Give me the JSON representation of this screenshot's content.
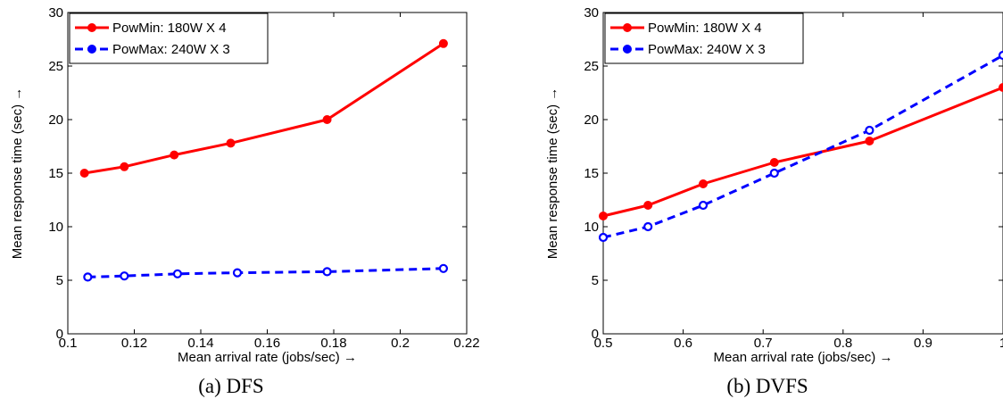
{
  "chart_data": [
    {
      "type": "line",
      "caption": "(a) DFS",
      "xlabel": "Mean arrival rate (jobs/sec) →",
      "ylabel": "Mean response time (sec) →",
      "xlim": [
        0.1,
        0.22
      ],
      "ylim": [
        0,
        30
      ],
      "xticks": [
        0.1,
        0.12,
        0.14,
        0.16,
        0.18,
        0.2,
        0.22
      ],
      "xtick_labels": [
        "0.1",
        "0.12",
        "0.14",
        "0.16",
        "0.18",
        "0.2",
        "0.22"
      ],
      "yticks": [
        0,
        5,
        10,
        15,
        20,
        25,
        30
      ],
      "ytick_labels": [
        "0",
        "5",
        "10",
        "15",
        "20",
        "25",
        "30"
      ],
      "grid": false,
      "legend_position": "top-left",
      "series": [
        {
          "name": "PowMin: 180W X 4",
          "color": "#ff0000",
          "line_style": "solid",
          "marker": "filled-circle",
          "points": [
            [
              0.105,
              15.0
            ],
            [
              0.117,
              15.6
            ],
            [
              0.132,
              16.7
            ],
            [
              0.149,
              17.8
            ],
            [
              0.178,
              20.0
            ],
            [
              0.213,
              27.1
            ]
          ]
        },
        {
          "name": "PowMax: 240W X 3",
          "color": "#0000ff",
          "line_style": "dashed",
          "marker": "open-circle",
          "points": [
            [
              0.106,
              5.3
            ],
            [
              0.117,
              5.4
            ],
            [
              0.133,
              5.6
            ],
            [
              0.151,
              5.7
            ],
            [
              0.178,
              5.8
            ],
            [
              0.213,
              6.1
            ]
          ]
        }
      ]
    },
    {
      "type": "line",
      "caption": "(b) DVFS",
      "xlabel": "Mean arrival rate (jobs/sec) →",
      "ylabel": "Mean response time (sec) →",
      "xlim": [
        0.5,
        1.0
      ],
      "ylim": [
        0,
        30
      ],
      "xticks": [
        0.5,
        0.6,
        0.7,
        0.8,
        0.9,
        1.0
      ],
      "xtick_labels": [
        "0.5",
        "0.6",
        "0.7",
        "0.8",
        "0.9",
        "1"
      ],
      "yticks": [
        0,
        5,
        10,
        15,
        20,
        25,
        30
      ],
      "ytick_labels": [
        "0",
        "5",
        "10",
        "15",
        "20",
        "25",
        "30"
      ],
      "grid": false,
      "legend_position": "top-left",
      "series": [
        {
          "name": "PowMin: 180W X 4",
          "color": "#ff0000",
          "line_style": "solid",
          "marker": "filled-circle",
          "points": [
            [
              0.5,
              11.0
            ],
            [
              0.556,
              12.0
            ],
            [
              0.625,
              14.0
            ],
            [
              0.714,
              16.0
            ],
            [
              0.833,
              18.0
            ],
            [
              1.0,
              23.0
            ]
          ]
        },
        {
          "name": "PowMax: 240W X 3",
          "color": "#0000ff",
          "line_style": "dashed",
          "marker": "open-circle",
          "points": [
            [
              0.5,
              9.0
            ],
            [
              0.556,
              10.0
            ],
            [
              0.625,
              12.0
            ],
            [
              0.714,
              15.0
            ],
            [
              0.833,
              19.0
            ],
            [
              1.0,
              26.0
            ]
          ]
        }
      ]
    }
  ]
}
